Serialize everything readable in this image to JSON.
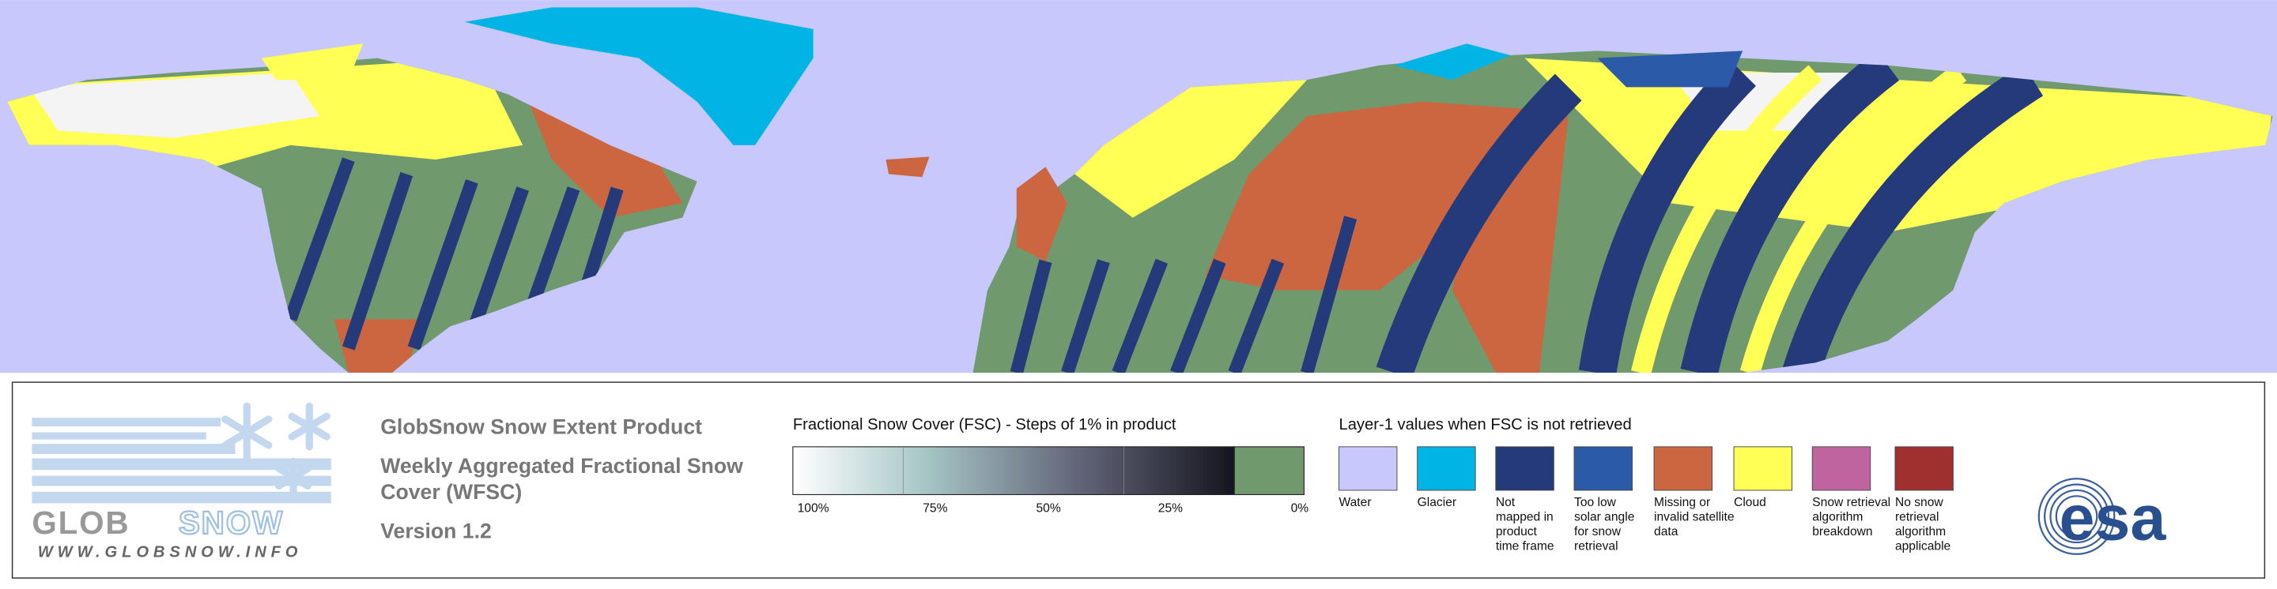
{
  "header": {
    "title": "GlobSnow Snow Extent Product",
    "subtitle_lines": [
      "Weekly Aggregated Fractional Snow",
      "Cover (WFSC)"
    ],
    "version": "Version 1.2"
  },
  "logo": {
    "name_parts": [
      "GLOB",
      "SNOW"
    ],
    "url": "WWW.GLOBSNOW.INFO",
    "agency": "esa"
  },
  "fsc_legend": {
    "title": "Fractional Snow Cover (FSC) - Steps of 1% in product",
    "ticks": [
      "100%",
      "75%",
      "50%",
      "25%",
      "0%"
    ],
    "no_snow_color": "#709a6e"
  },
  "layer1_legend": {
    "title": "Layer-1 values when FSC is not retrieved",
    "items": [
      {
        "label_lines": [
          "Water"
        ],
        "color": "#c8c8fc"
      },
      {
        "label_lines": [
          "Glacier"
        ],
        "color": "#00b4e6"
      },
      {
        "label_lines": [
          "Not",
          "mapped in",
          "product",
          "time frame"
        ],
        "color": "#253a7a"
      },
      {
        "label_lines": [
          "Too low",
          "solar angle",
          "for snow",
          "retrieval"
        ],
        "color": "#2a5aa8"
      },
      {
        "label_lines": [
          "Missing or",
          "invalid satellite",
          "data"
        ],
        "color": "#cc6640"
      },
      {
        "label_lines": [
          "Cloud"
        ],
        "color": "#ffff55"
      },
      {
        "label_lines": [
          "Snow retrieval",
          "algorithm",
          "breakdown"
        ],
        "color": "#c064a0"
      },
      {
        "label_lines": [
          "No snow",
          "retrieval",
          "algorithm",
          "applicable"
        ],
        "color": "#a03030"
      }
    ]
  }
}
